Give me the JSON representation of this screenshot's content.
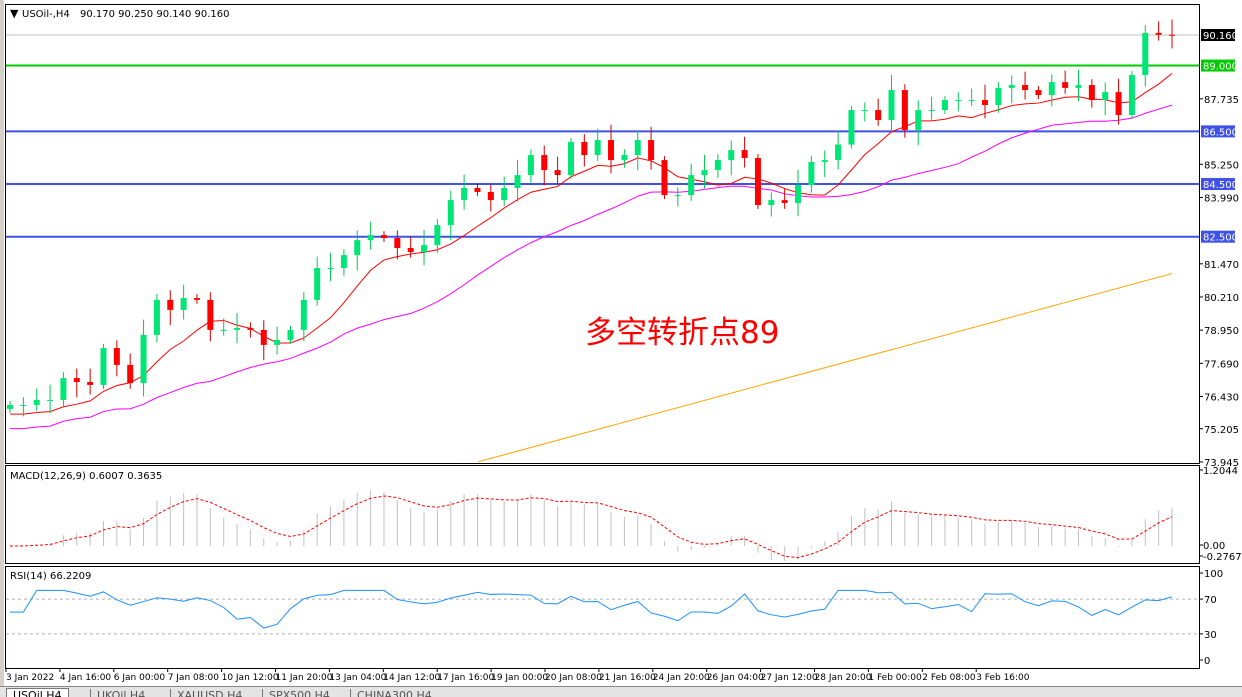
{
  "header": {
    "symbol": "USOil-,H4",
    "ohlc": "90.170 90.250 90.140 90.160"
  },
  "annotation": {
    "text": "多空转折点89",
    "color": "#ff0000"
  },
  "tabs": [
    "USOil,H4",
    "UKOil,H4",
    "XAUUSD,H4",
    "SPX500,H4",
    "CHINA300,H4"
  ],
  "colors": {
    "up": "#00e676",
    "down": "#ff0000",
    "fast_ma": "#ff0000",
    "mid_ma": "#ff00ff",
    "slow_ma": "#ffa500",
    "support": "#3f51e8",
    "pivot": "#00cc00",
    "macd_hist": "#c0c0c0",
    "macd_signal": "#ff0000",
    "rsi": "#1e90ff"
  },
  "chart_data": [
    {
      "type": "candlestick",
      "title": "USOil-,H4",
      "ylim": [
        73.945,
        90.4
      ],
      "price_ticks": [
        "87.735",
        "85.250",
        "83.990",
        "81.470",
        "80.210",
        "78.950",
        "77.690",
        "76.430",
        "75.205",
        "73.945"
      ],
      "current_price": "90.160",
      "levels": [
        {
          "label": "89.000",
          "value": 89.0,
          "color": "#00cc00"
        },
        {
          "label": "86.500",
          "value": 86.5,
          "color": "#3f51e8"
        },
        {
          "label": "84.500",
          "value": 84.5,
          "color": "#3f51e8"
        },
        {
          "label": "82.500",
          "value": 82.5,
          "color": "#3f51e8"
        }
      ],
      "time_ticks": [
        "3 Jan 2022",
        "4 Jan 16:00",
        "6 Jan 00:00",
        "7 Jan 08:00",
        "10 Jan 12:00",
        "11 Jan 20:00",
        "13 Jan 04:00",
        "14 Jan 12:00",
        "17 Jan 16:00",
        "19 Jan 00:00",
        "20 Jan 08:00",
        "21 Jan 16:00",
        "24 Jan 20:00",
        "26 Jan 04:00",
        "27 Jan 12:00",
        "28 Jan 20:00",
        "1 Feb 00:00",
        "2 Feb 08:00",
        "3 Feb 16:00"
      ],
      "closes": [
        76.11,
        76.11,
        76.3,
        76.3,
        77.13,
        76.98,
        76.87,
        78.27,
        77.63,
        76.94,
        78.77,
        80.1,
        79.72,
        80.17,
        80.1,
        78.96,
        78.96,
        79.03,
        78.96,
        78.39,
        78.58,
        78.96,
        80.1,
        81.31,
        81.31,
        81.8,
        82.37,
        82.56,
        82.45,
        82.07,
        81.92,
        82.18,
        82.94,
        83.89,
        84.35,
        84.2,
        83.89,
        84.35,
        84.84,
        85.6,
        85.03,
        84.84,
        86.1,
        85.6,
        86.17,
        85.41,
        85.6,
        86.17,
        85.41,
        84.08,
        84.08,
        84.84,
        85.03,
        85.41,
        85.79,
        85.49,
        83.7,
        83.89,
        83.78,
        84.46,
        85.34,
        85.41,
        86.0,
        87.31,
        87.31,
        86.93,
        88.07,
        86.55,
        87.31,
        87.31,
        87.69,
        87.69,
        87.69,
        87.5,
        88.15,
        88.26,
        88.07,
        87.88,
        88.37,
        88.15,
        88.26,
        87.69,
        87.99,
        87.12,
        88.64,
        90.24,
        90.17,
        90.16
      ],
      "slow_ma_points": [
        [
          34,
          73.95
        ],
        [
          87,
          81.1
        ]
      ]
    },
    {
      "type": "macd",
      "label": "MACD(12,26,9) 0.6007 0.3635",
      "ticks": [
        "1.2044",
        "0.00",
        "-0.2767"
      ],
      "ylim": [
        -0.2767,
        1.2044
      ]
    },
    {
      "type": "line",
      "label": "RSI(14) 66.2209",
      "ticks": [
        "100",
        "70",
        "30",
        "0"
      ],
      "ylim": [
        0,
        100
      ],
      "levels": [
        70,
        30
      ]
    }
  ]
}
